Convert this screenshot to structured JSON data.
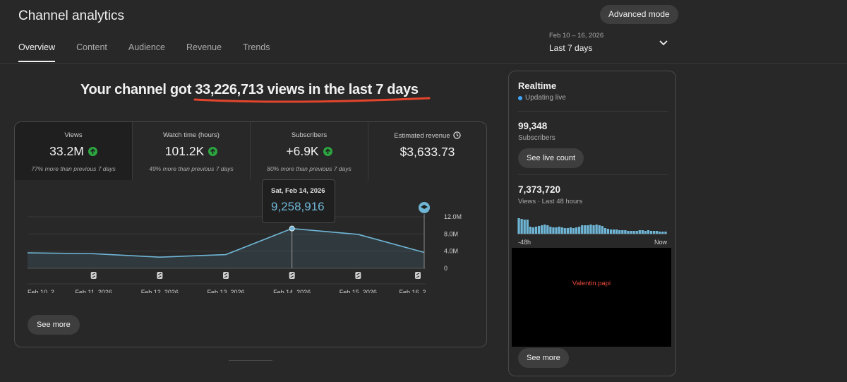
{
  "header": {
    "title": "Channel analytics",
    "advanced_mode": "Advanced mode"
  },
  "tabs": [
    {
      "label": "Overview",
      "active": true
    },
    {
      "label": "Content",
      "active": false
    },
    {
      "label": "Audience",
      "active": false
    },
    {
      "label": "Revenue",
      "active": false
    },
    {
      "label": "Trends",
      "active": false
    }
  ],
  "date_picker": {
    "range": "Feb 10 – 16, 2026",
    "label": "Last 7 days",
    "icon": "chevron-down-icon"
  },
  "headline": {
    "prefix": "Your channel got ",
    "highlight": "33,226,713 views in the last 7 days",
    "underline_color": "#e3452c"
  },
  "metrics": [
    {
      "label": "Views",
      "value": "33.2M",
      "trend": "up",
      "sub": "77% more than previous 7 days"
    },
    {
      "label": "Watch time (hours)",
      "value": "101.2K",
      "trend": "up",
      "sub": "49% more than previous 7 days"
    },
    {
      "label": "Subscribers",
      "value": "+6.9K",
      "trend": "up",
      "sub": "80% more than previous 7 days"
    },
    {
      "label": "Estimated revenue",
      "value": "$3,633.73",
      "trend": null,
      "sub": ""
    }
  ],
  "chart_data": {
    "type": "area",
    "x": [
      "Feb 10, 2...",
      "Feb 11, 2026",
      "Feb 12, 2026",
      "Feb 13, 2026",
      "Feb 14, 2026",
      "Feb 15, 2026",
      "Feb 16, 2..."
    ],
    "series": [
      {
        "values": [
          3.6,
          3.4,
          2.6,
          3.2,
          9.258916,
          7.9,
          3.7
        ]
      }
    ],
    "y_ticks": [
      "12.0M",
      "8.0M",
      "4.0M",
      "0"
    ],
    "ylim": [
      0,
      12
    ],
    "grid": true,
    "color": "#6fb6d6",
    "tooltip": {
      "date": "Sat, Feb 14, 2026",
      "value": "9,258,916"
    }
  },
  "realtime": {
    "title": "Realtime",
    "status": "Updating live",
    "subscribers": "99,348",
    "subscribers_label": "Subscribers",
    "live_count_button": "See live count",
    "views": "7,373,720",
    "views_label": "Views · Last 48 hours",
    "mini_chart": {
      "type": "bar",
      "values": [
        22,
        21,
        20,
        20,
        10,
        9,
        10,
        11,
        12,
        13,
        12,
        10,
        9,
        9,
        10,
        9,
        8,
        8,
        9,
        8,
        9,
        10,
        12,
        12,
        12,
        13,
        12,
        13,
        12,
        11,
        8,
        7,
        6,
        6,
        6,
        5,
        5,
        5,
        4,
        4,
        4,
        4,
        5,
        5,
        4,
        5,
        4,
        4,
        4,
        3,
        3,
        3
      ],
      "left_label": "-48h",
      "right_label": "Now",
      "color": "#6fb6d6"
    },
    "video_text": "Valentin.papi",
    "see_more": "See more"
  },
  "card": {
    "see_more": "See more"
  }
}
